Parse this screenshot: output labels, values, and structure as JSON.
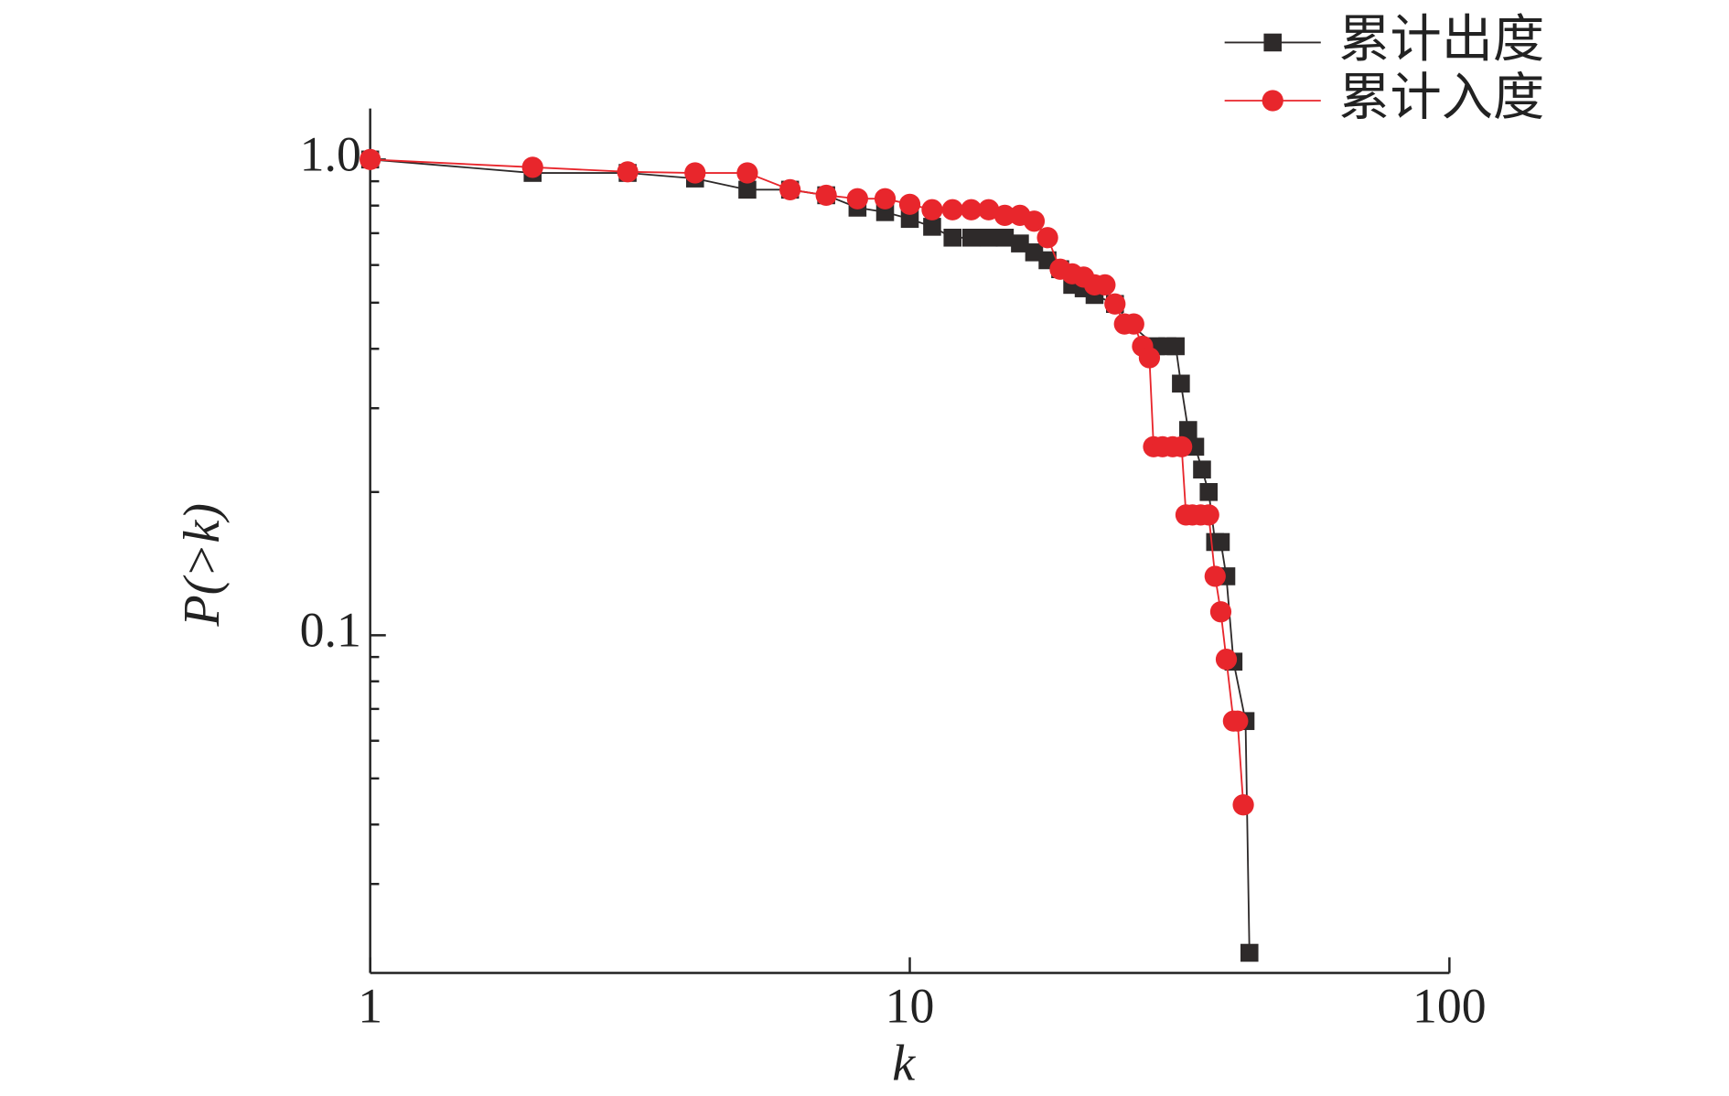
{
  "chart_data": {
    "type": "line",
    "xlabel": "k",
    "ylabel": "P(>k)",
    "xscale": "log",
    "yscale": "log",
    "xlim": [
      1,
      100
    ],
    "xticks": [
      1,
      10,
      100
    ],
    "ylim": [
      0.0195,
      1.28
    ],
    "yticks": [
      {
        "value": 1,
        "label": "1.0"
      },
      0.1
    ],
    "yminor_ticks": [
      0.03,
      0.04,
      0.05,
      0.06,
      0.07,
      0.08,
      0.09,
      0.2,
      0.3,
      0.4,
      0.5,
      0.6,
      0.7,
      0.8,
      0.9
    ],
    "legend": "top-right",
    "series": [
      {
        "name": "累计出度",
        "color": "#2e2a2a",
        "marker": "square",
        "x": [
          1,
          2,
          3,
          4,
          5,
          6,
          7,
          8,
          9,
          10,
          11,
          12,
          13,
          14,
          15,
          16,
          17,
          18,
          19,
          20,
          21,
          22,
          24,
          25.6,
          28.6,
          30,
          31.1,
          31.8,
          32.8,
          33.8,
          34.8,
          35.8,
          36.8,
          37.7,
          38.6,
          39.8,
          41.9,
          42.6
        ],
        "values": [
          1.0,
          0.937,
          0.937,
          0.912,
          0.864,
          0.864,
          0.841,
          0.792,
          0.775,
          0.75,
          0.722,
          0.685,
          0.685,
          0.685,
          0.685,
          0.666,
          0.638,
          0.614,
          0.588,
          0.545,
          0.536,
          0.519,
          0.497,
          0.451,
          0.405,
          0.405,
          0.405,
          0.338,
          0.27,
          0.249,
          0.223,
          0.2,
          0.157,
          0.157,
          0.133,
          0.088,
          0.066,
          0.0215
        ]
      },
      {
        "name": "累计入度",
        "color": "#e8262c",
        "marker": "circle",
        "x": [
          1,
          2,
          3,
          4,
          5,
          6,
          7,
          8,
          9,
          10,
          11,
          12,
          13,
          14,
          15,
          16,
          17,
          18,
          19,
          20,
          21,
          22,
          23,
          24,
          25,
          26,
          27,
          27.8,
          28.3,
          29.4,
          30.7,
          31.9,
          32.5,
          33.4,
          34.6,
          35.8,
          36.8,
          37.7,
          38.6,
          39.8,
          40.5,
          41.5
        ],
        "values": [
          1.0,
          0.963,
          0.942,
          0.937,
          0.937,
          0.864,
          0.841,
          0.827,
          0.827,
          0.805,
          0.784,
          0.784,
          0.784,
          0.784,
          0.763,
          0.763,
          0.742,
          0.685,
          0.588,
          0.575,
          0.566,
          0.545,
          0.545,
          0.497,
          0.451,
          0.451,
          0.405,
          0.383,
          0.249,
          0.249,
          0.249,
          0.249,
          0.179,
          0.179,
          0.179,
          0.179,
          0.133,
          0.112,
          0.089,
          0.066,
          0.066,
          0.044
        ]
      }
    ]
  }
}
